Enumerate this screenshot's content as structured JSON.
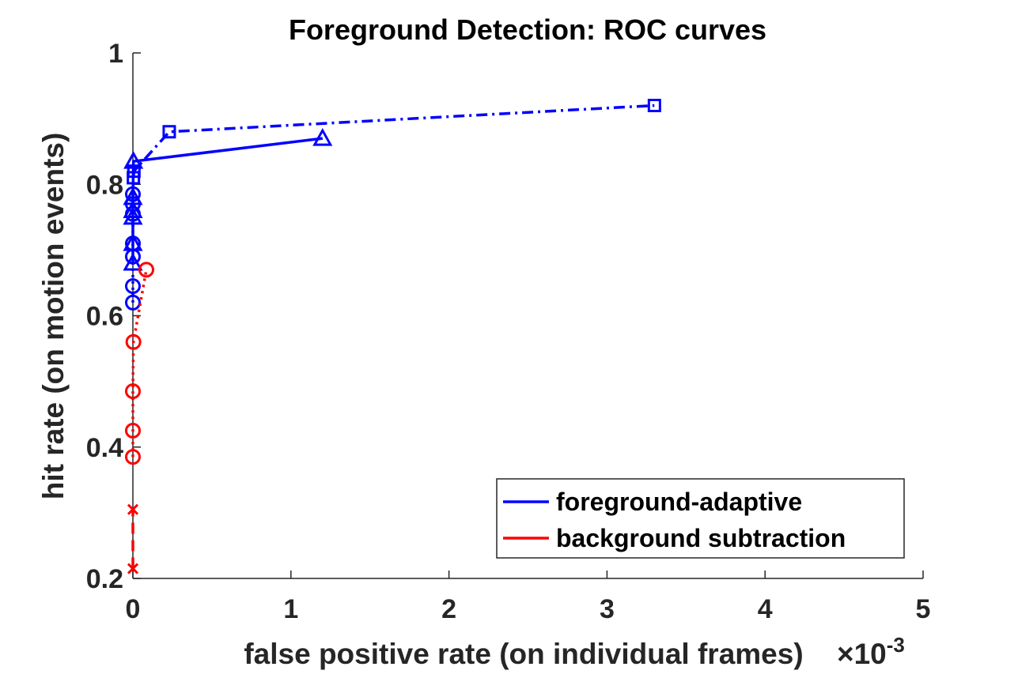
{
  "chart_data": {
    "type": "line",
    "title": "Foreground Detection: ROC curves",
    "xlabel": "false positive rate (on individual frames)",
    "ylabel": "hit rate (on motion events)",
    "x_exponent_label": {
      "base": "×10",
      "exponent": "-3"
    },
    "xlim": [
      0,
      0.005
    ],
    "ylim": [
      0.2,
      1
    ],
    "x_ticks": [
      0,
      0.001,
      0.002,
      0.003,
      0.004,
      0.005
    ],
    "x_tick_labels": [
      "0",
      "1",
      "2",
      "3",
      "4",
      "5"
    ],
    "y_ticks": [
      0.2,
      0.4,
      0.6,
      0.8,
      1
    ],
    "y_tick_labels": [
      "0.2",
      "0.4",
      "0.6",
      "0.8",
      "1"
    ],
    "grid": false,
    "legend_placement": "bottom-right",
    "legend": [
      {
        "label": "foreground-adaptive",
        "color": "#0000ff"
      },
      {
        "label": "background subtraction",
        "color": "#ff0000"
      }
    ],
    "series": [
      {
        "marker": "square",
        "line": "dashdot",
        "color": "#0000ff",
        "x": [
          3.3e-06,
          6.5e-06,
          0.00023,
          0.0033
        ],
        "y": [
          0.81,
          0.82,
          0.88,
          0.92
        ]
      },
      {
        "marker": "triangle",
        "line": "solid",
        "color": "#0000ff",
        "x": [
          0,
          0,
          0,
          0,
          0,
          3.3e-06,
          0.0012
        ],
        "y": [
          0.68,
          0.71,
          0.75,
          0.76,
          0.78,
          0.835,
          0.87
        ]
      },
      {
        "marker": "circle",
        "line": "dotted",
        "color": "#0000ff",
        "x": [
          0,
          0,
          0,
          0,
          0,
          0,
          0
        ],
        "y": [
          0.62,
          0.645,
          0.69,
          0.71,
          0.755,
          0.77,
          0.785
        ]
      },
      {
        "marker": "circle",
        "line": "dotted",
        "color": "#ff0000",
        "x": [
          0,
          0,
          0,
          3.3e-06,
          8.5e-05
        ],
        "y": [
          0.385,
          0.425,
          0.485,
          0.56,
          0.67
        ]
      },
      {
        "marker": "x",
        "line": "dashed",
        "color": "#ff0000",
        "x": [
          0,
          0
        ],
        "y": [
          0.215,
          0.305
        ]
      }
    ]
  }
}
